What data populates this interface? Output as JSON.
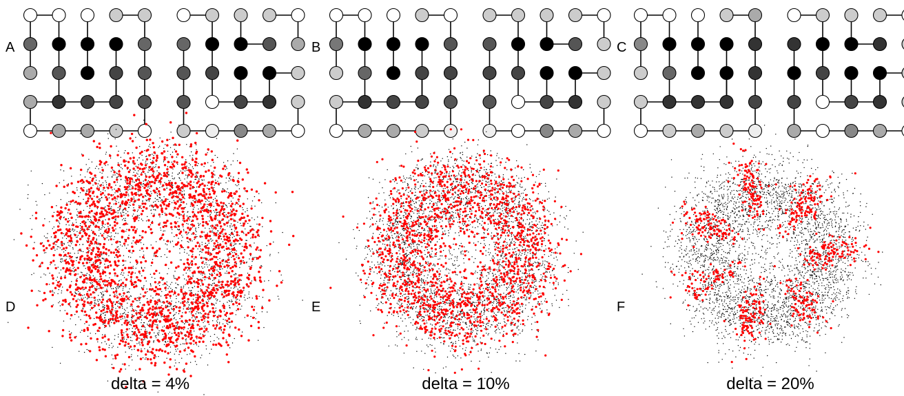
{
  "panels": {
    "a": {
      "label": "A",
      "shades": [
        [
          "#ffffff",
          "#ffffff",
          "#ffffff",
          "#cccccc",
          "#cccccc",
          "#ffffff",
          "#cccccc",
          "#cccccc",
          "#cccccc",
          "#ffffff"
        ],
        [
          "#666666",
          "#000000",
          "#000000",
          "#000000",
          "#666666",
          "#666666",
          "#000000",
          "#000000",
          "#555555",
          "#aaaaaa"
        ],
        [
          "#aaaaaa",
          "#555555",
          "#000000",
          "#444444",
          "#555555",
          "#555555",
          "#444444",
          "#000000",
          "#000000",
          "#cccccc"
        ],
        [
          "#aaaaaa",
          "#333333",
          "#444444",
          "#444444",
          "#555555",
          "#555555",
          "#ffffff",
          "#444444",
          "#333333",
          "#cccccc"
        ],
        [
          "#ffffff",
          "#aaaaaa",
          "#aaaaaa",
          "#cccccc",
          "#ffffff",
          "#cccccc",
          "#eeeeee",
          "#888888",
          "#aaaaaa",
          "#ffffff"
        ]
      ]
    },
    "b": {
      "label": "B",
      "shades": [
        [
          "#ffffff",
          "#ffffff",
          "#ffffff",
          "#cccccc",
          "#ffffff",
          "#cccccc",
          "#cccccc",
          "#cccccc",
          "#cccccc",
          "#ffffff"
        ],
        [
          "#777777",
          "#000000",
          "#000000",
          "#000000",
          "#555555",
          "#555555",
          "#000000",
          "#000000",
          "#555555",
          "#cccccc"
        ],
        [
          "#cccccc",
          "#666666",
          "#000000",
          "#444444",
          "#444444",
          "#444444",
          "#444444",
          "#000000",
          "#000000",
          "#cccccc"
        ],
        [
          "#cccccc",
          "#333333",
          "#444444",
          "#444444",
          "#555555",
          "#555555",
          "#ffffff",
          "#444444",
          "#333333",
          "#cccccc"
        ],
        [
          "#ffffff",
          "#aaaaaa",
          "#aaaaaa",
          "#cccccc",
          "#eeeeee",
          "#eeeeee",
          "#ffffff",
          "#888888",
          "#aaaaaa",
          "#ffffff"
        ]
      ]
    },
    "c": {
      "label": "C",
      "shades": [
        [
          "#ffffff",
          "#ffffff",
          "#ffffff",
          "#cccccc",
          "#aaaaaa",
          "#ffffff",
          "#cccccc",
          "#cccccc",
          "#cccccc",
          "#ffffff"
        ],
        [
          "#888888",
          "#000000",
          "#000000",
          "#000000",
          "#333333",
          "#333333",
          "#000000",
          "#000000",
          "#333333",
          "#cccccc"
        ],
        [
          "#cccccc",
          "#666666",
          "#000000",
          "#000000",
          "#333333",
          "#000000",
          "#444444",
          "#000000",
          "#000000",
          "#cccccc"
        ],
        [
          "#cccccc",
          "#333333",
          "#333333",
          "#333333",
          "#444444",
          "#444444",
          "#ffffff",
          "#444444",
          "#333333",
          "#cccccc"
        ],
        [
          "#ffffff",
          "#cccccc",
          "#aaaaaa",
          "#cccccc",
          "#eeeeee",
          "#aaaaaa",
          "#ffffff",
          "#888888",
          "#aaaaaa",
          "#ffffff"
        ]
      ]
    },
    "d": {
      "label": "D",
      "caption": "delta = 4%",
      "red_share": 0.75
    },
    "e": {
      "label": "E",
      "caption": "delta = 10%",
      "red_share": 0.5
    },
    "f": {
      "label": "F",
      "caption": "delta = 20%",
      "red_share": 0.2
    }
  },
  "colors": {
    "highlight": "#ff0000",
    "base": "#000000",
    "edge": "#000000"
  }
}
